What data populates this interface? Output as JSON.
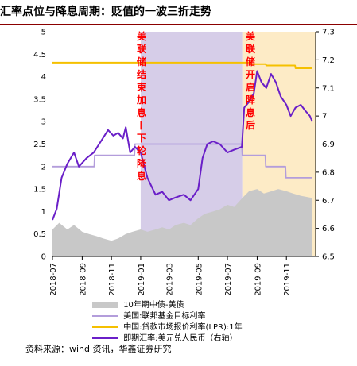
{
  "title": "汇率点位与降息周期：贬值的一波三折走势",
  "source": "资料来源：wind 资讯，华鑫证券研究",
  "colors": {
    "bond": "#c8c8c8",
    "fed": "#b39ddb",
    "lpr": "#f5c000",
    "fx": "#6a1fc8",
    "band1": "#d6cde8",
    "band2": "#fdebc6",
    "annot": "#ff0000"
  },
  "chart_data": {
    "type": "line",
    "left_axis": {
      "ylim": [
        0,
        5
      ],
      "ticks": [
        "0",
        "0.5",
        "1",
        "1.5",
        "2",
        "2.5",
        "3",
        "3.5",
        "4",
        "4.5",
        "5"
      ]
    },
    "right_axis": {
      "ylim": [
        6.5,
        7.3
      ],
      "ticks": [
        "6.5",
        "6.6",
        "6.7",
        "6.8",
        "6.9",
        "7",
        "7.1",
        "7.2",
        "7.3"
      ]
    },
    "x_ticks": [
      "2018-07",
      "2018-09",
      "2018-11",
      "2019-01",
      "2019-03",
      "2019-05",
      "2019-07",
      "2019-09",
      "2019-11"
    ],
    "x_range": [
      "2018-07",
      "2020-01"
    ],
    "annotations": [
      {
        "text": "美联储结束加息—下轮降息",
        "from": "2019-01",
        "to": "2019-08"
      },
      {
        "text": "美联储开启降息后",
        "from": "2019-08",
        "to": "2020-01"
      }
    ],
    "series": [
      {
        "name": "10年期中债-美债",
        "axis": "left",
        "style": "area",
        "points": [
          [
            "2018-07-01",
            0.6
          ],
          [
            "2018-07-15",
            0.75
          ],
          [
            "2018-08-01",
            0.6
          ],
          [
            "2018-08-15",
            0.7
          ],
          [
            "2018-09-01",
            0.55
          ],
          [
            "2018-09-15",
            0.5
          ],
          [
            "2018-10-01",
            0.45
          ],
          [
            "2018-10-15",
            0.4
          ],
          [
            "2018-11-01",
            0.35
          ],
          [
            "2018-11-15",
            0.4
          ],
          [
            "2018-12-01",
            0.5
          ],
          [
            "2018-12-15",
            0.55
          ],
          [
            "2019-01-01",
            0.6
          ],
          [
            "2019-01-15",
            0.55
          ],
          [
            "2019-02-01",
            0.6
          ],
          [
            "2019-02-15",
            0.65
          ],
          [
            "2019-03-01",
            0.6
          ],
          [
            "2019-03-15",
            0.7
          ],
          [
            "2019-04-01",
            0.75
          ],
          [
            "2019-04-15",
            0.7
          ],
          [
            "2019-05-01",
            0.85
          ],
          [
            "2019-05-15",
            0.95
          ],
          [
            "2019-06-01",
            1.0
          ],
          [
            "2019-06-15",
            1.05
          ],
          [
            "2019-07-01",
            1.15
          ],
          [
            "2019-07-15",
            1.1
          ],
          [
            "2019-08-01",
            1.3
          ],
          [
            "2019-08-15",
            1.45
          ],
          [
            "2019-09-01",
            1.5
          ],
          [
            "2019-09-15",
            1.4
          ],
          [
            "2019-10-01",
            1.45
          ],
          [
            "2019-10-15",
            1.5
          ],
          [
            "2019-11-01",
            1.45
          ],
          [
            "2019-11-15",
            1.4
          ],
          [
            "2019-12-01",
            1.35
          ],
          [
            "2019-12-25",
            1.3
          ]
        ]
      },
      {
        "name": "美国:联邦基金目标利率",
        "axis": "left",
        "points": [
          [
            "2018-07-01",
            2.0
          ],
          [
            "2018-09-26",
            2.0
          ],
          [
            "2018-09-27",
            2.25
          ],
          [
            "2018-12-19",
            2.25
          ],
          [
            "2018-12-20",
            2.5
          ],
          [
            "2019-07-31",
            2.5
          ],
          [
            "2019-08-01",
            2.25
          ],
          [
            "2019-09-18",
            2.25
          ],
          [
            "2019-09-19",
            2.0
          ],
          [
            "2019-10-30",
            2.0
          ],
          [
            "2019-10-31",
            1.75
          ],
          [
            "2019-12-25",
            1.75
          ]
        ]
      },
      {
        "name": "中国:贷款市场报价利率(LPR):1年",
        "axis": "right",
        "points": [
          [
            "2018-07-01",
            7.19
          ],
          [
            "2019-08-19",
            7.19
          ],
          [
            "2019-08-20",
            7.185
          ],
          [
            "2019-09-19",
            7.185
          ],
          [
            "2019-09-20",
            7.18
          ],
          [
            "2019-11-19",
            7.18
          ],
          [
            "2019-11-20",
            7.17
          ],
          [
            "2019-12-25",
            7.17
          ]
        ]
      },
      {
        "name": "即期汇率:美元兑人民币（右轴）",
        "axis": "right",
        "points": [
          [
            "2018-07-01",
            6.63
          ],
          [
            "2018-07-10",
            6.67
          ],
          [
            "2018-07-20",
            6.78
          ],
          [
            "2018-08-01",
            6.83
          ],
          [
            "2018-08-15",
            6.87
          ],
          [
            "2018-08-25",
            6.82
          ],
          [
            "2018-09-10",
            6.85
          ],
          [
            "2018-09-25",
            6.87
          ],
          [
            "2018-10-10",
            6.91
          ],
          [
            "2018-10-25",
            6.95
          ],
          [
            "2018-11-05",
            6.93
          ],
          [
            "2018-11-15",
            6.94
          ],
          [
            "2018-11-25",
            6.92
          ],
          [
            "2018-12-01",
            6.96
          ],
          [
            "2018-12-10",
            6.87
          ],
          [
            "2018-12-20",
            6.89
          ],
          [
            "2019-01-01",
            6.87
          ],
          [
            "2019-01-15",
            6.78
          ],
          [
            "2019-02-01",
            6.72
          ],
          [
            "2019-02-15",
            6.73
          ],
          [
            "2019-03-01",
            6.7
          ],
          [
            "2019-03-15",
            6.71
          ],
          [
            "2019-04-01",
            6.72
          ],
          [
            "2019-04-15",
            6.7
          ],
          [
            "2019-05-01",
            6.74
          ],
          [
            "2019-05-10",
            6.85
          ],
          [
            "2019-05-20",
            6.9
          ],
          [
            "2019-06-01",
            6.91
          ],
          [
            "2019-06-15",
            6.9
          ],
          [
            "2019-07-01",
            6.87
          ],
          [
            "2019-07-15",
            6.88
          ],
          [
            "2019-07-31",
            6.89
          ],
          [
            "2019-08-05",
            7.03
          ],
          [
            "2019-08-15",
            7.05
          ],
          [
            "2019-08-25",
            7.08
          ],
          [
            "2019-09-01",
            7.16
          ],
          [
            "2019-09-10",
            7.12
          ],
          [
            "2019-09-20",
            7.1
          ],
          [
            "2019-09-30",
            7.15
          ],
          [
            "2019-10-10",
            7.12
          ],
          [
            "2019-10-20",
            7.07
          ],
          [
            "2019-11-01",
            7.04
          ],
          [
            "2019-11-10",
            7.0
          ],
          [
            "2019-11-20",
            7.03
          ],
          [
            "2019-12-01",
            7.04
          ],
          [
            "2019-12-10",
            7.02
          ],
          [
            "2019-12-20",
            7.0
          ],
          [
            "2019-12-25",
            6.98
          ]
        ]
      }
    ]
  }
}
